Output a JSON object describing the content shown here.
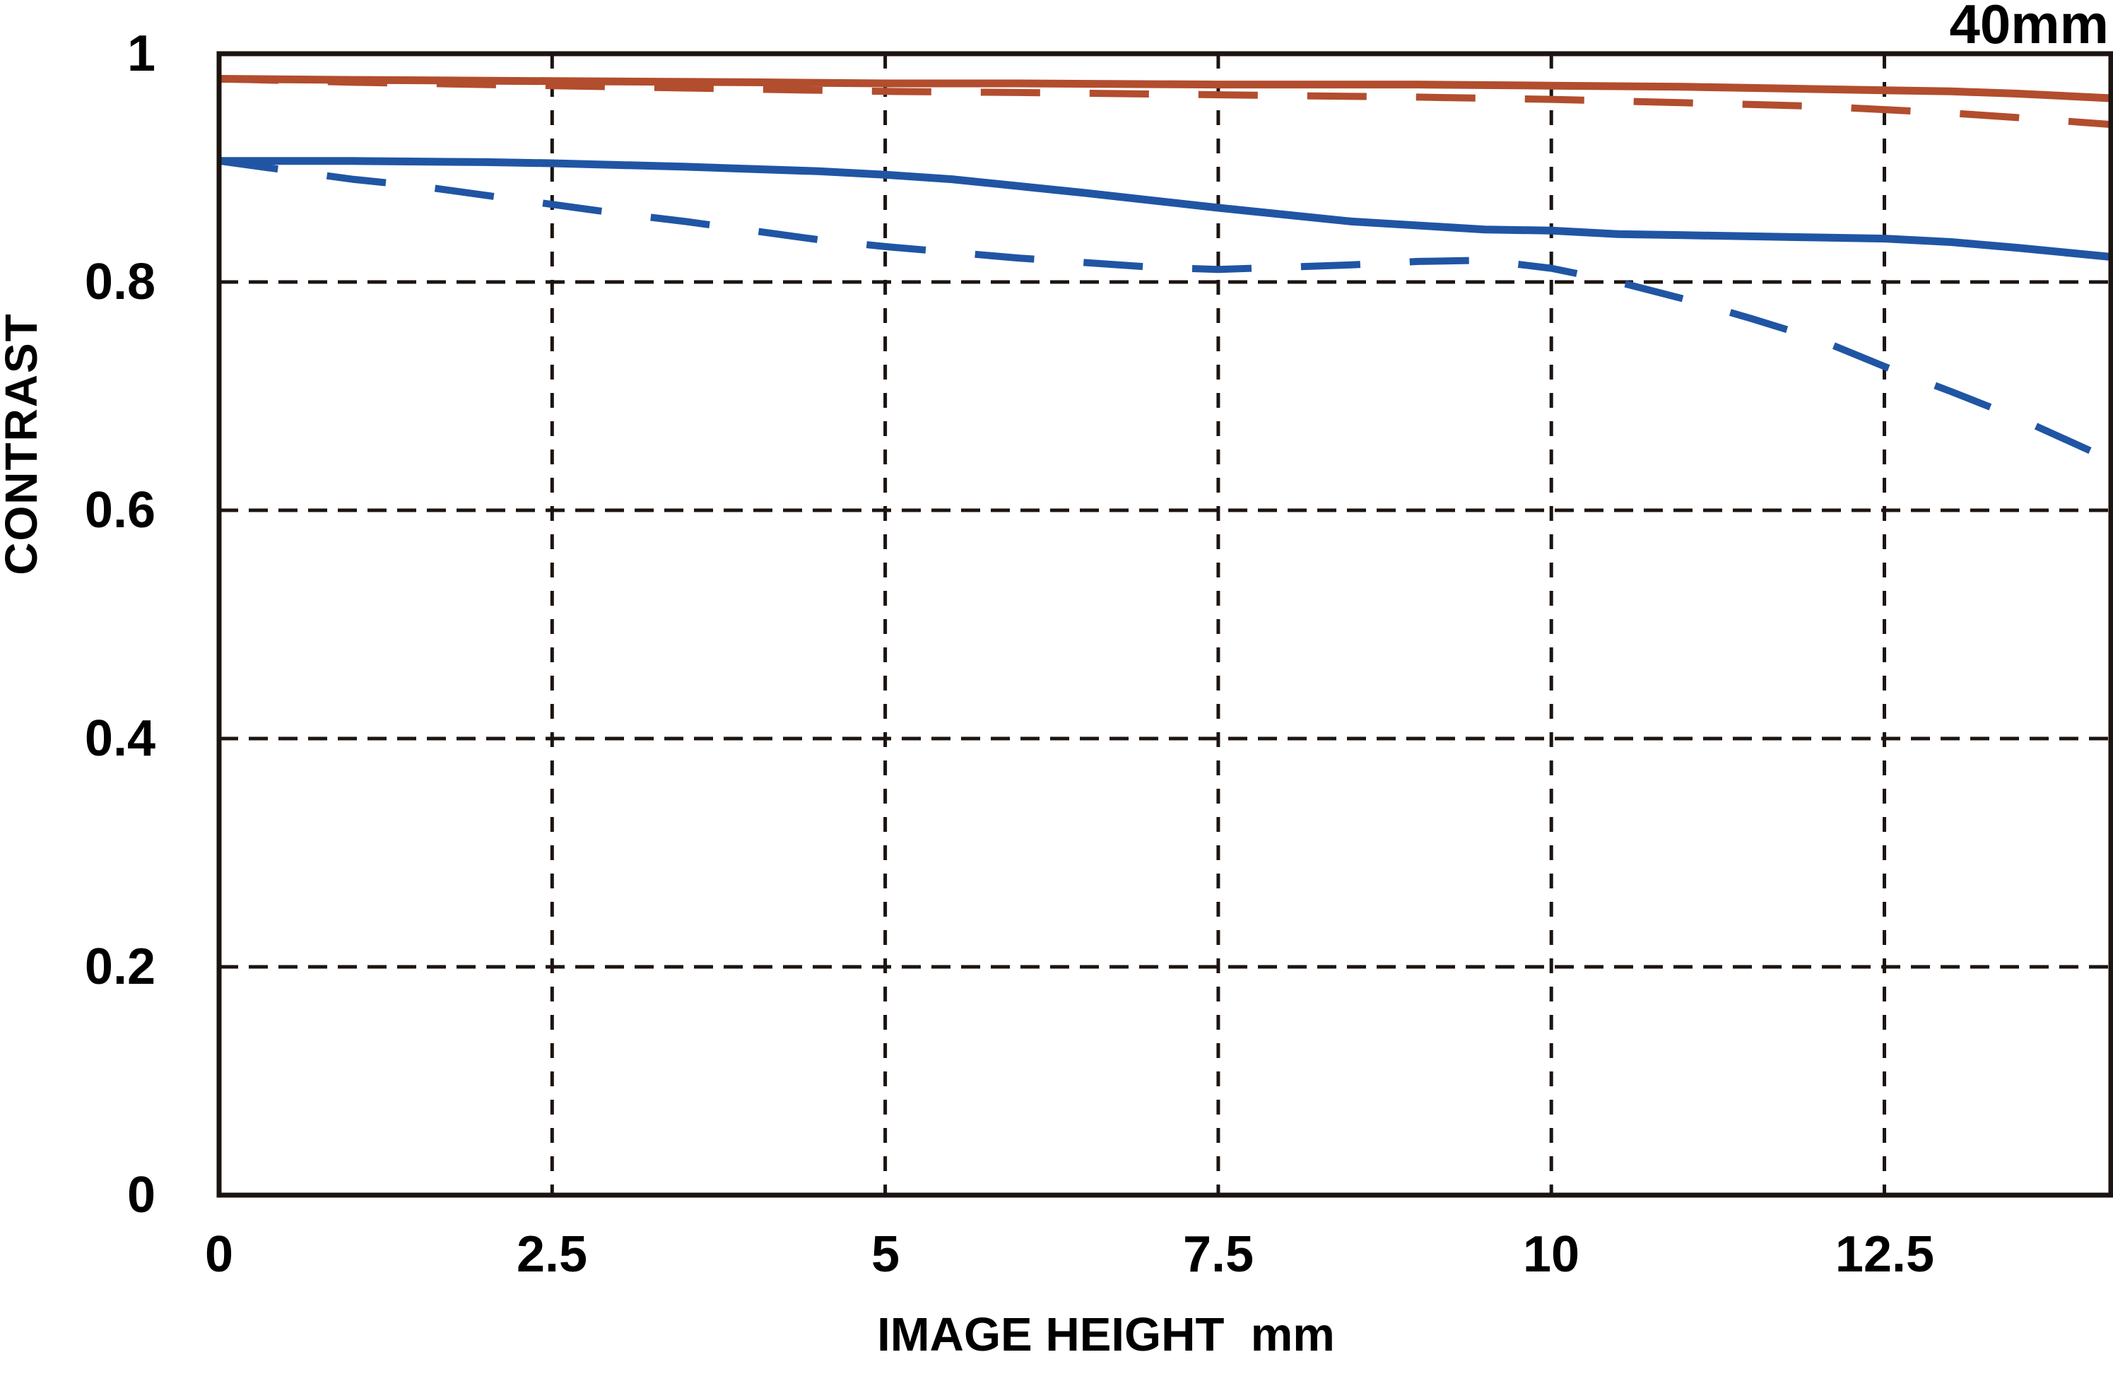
{
  "title": "40mm",
  "y_axis": {
    "label": "CONTRAST",
    "ticks": [
      "1",
      "0.8",
      "0.6",
      "0.4",
      "0.2",
      "0"
    ]
  },
  "x_axis": {
    "label": "IMAGE HEIGHT  mm",
    "ticks": [
      "0",
      "2.5",
      "5",
      "7.5",
      "10",
      "12.5"
    ]
  },
  "chart_data": {
    "type": "line",
    "title": "40mm",
    "xlabel": "IMAGE HEIGHT mm",
    "ylabel": "CONTRAST",
    "xlim": [
      0,
      14.2
    ],
    "ylim": [
      0,
      1
    ],
    "x_tick_values": [
      0,
      2.5,
      5,
      7.5,
      10,
      12.5
    ],
    "y_tick_values": [
      0,
      0.2,
      0.4,
      0.6,
      0.8,
      1
    ],
    "grid": "dashed-gridlines-on",
    "legend_position": "none",
    "frame_color": "#1c1410",
    "series": [
      {
        "name": "red-solid",
        "color": "#B24D2E",
        "style": "solid",
        "x": [
          0,
          1,
          2.5,
          4,
          5,
          6,
          7.5,
          9,
          10,
          11,
          12,
          12.5,
          13,
          13.5,
          14.2
        ],
        "y": [
          0.978,
          0.977,
          0.976,
          0.975,
          0.974,
          0.974,
          0.973,
          0.973,
          0.972,
          0.971,
          0.969,
          0.968,
          0.967,
          0.965,
          0.961
        ]
      },
      {
        "name": "red-dashed",
        "color": "#B24D2E",
        "style": "dashed",
        "x": [
          0,
          1,
          2,
          2.5,
          3.5,
          5,
          6,
          7.5,
          9,
          10,
          11,
          12,
          12.5,
          13,
          13.5,
          14.2
        ],
        "y": [
          0.978,
          0.975,
          0.973,
          0.972,
          0.97,
          0.967,
          0.966,
          0.964,
          0.962,
          0.96,
          0.957,
          0.954,
          0.951,
          0.948,
          0.944,
          0.938
        ]
      },
      {
        "name": "blue-solid",
        "color": "#2055A4",
        "style": "solid",
        "x": [
          0,
          1,
          2,
          2.5,
          3.5,
          4.5,
          5,
          5.5,
          6.5,
          7.5,
          8.5,
          9.5,
          10,
          10.5,
          11,
          11.5,
          12,
          12.5,
          13,
          13.5,
          14.2
        ],
        "y": [
          0.906,
          0.906,
          0.905,
          0.904,
          0.901,
          0.897,
          0.894,
          0.89,
          0.878,
          0.865,
          0.853,
          0.846,
          0.845,
          0.842,
          0.841,
          0.84,
          0.839,
          0.838,
          0.835,
          0.83,
          0.822
        ]
      },
      {
        "name": "blue-dashed",
        "color": "#2055A4",
        "style": "dashed",
        "x": [
          0,
          0.5,
          1,
          1.5,
          2,
          2.5,
          3,
          3.5,
          4,
          4.5,
          5,
          5.5,
          6,
          6.5,
          7,
          7.5,
          8,
          8.5,
          9,
          9.5,
          10,
          10.5,
          11,
          11.5,
          12,
          12.5,
          13,
          13.5,
          14.2
        ],
        "y": [
          0.906,
          0.898,
          0.89,
          0.884,
          0.876,
          0.868,
          0.86,
          0.853,
          0.845,
          0.837,
          0.831,
          0.826,
          0.821,
          0.817,
          0.813,
          0.811,
          0.813,
          0.815,
          0.818,
          0.819,
          0.812,
          0.8,
          0.785,
          0.768,
          0.75,
          0.726,
          0.704,
          0.681,
          0.644
        ]
      }
    ]
  }
}
